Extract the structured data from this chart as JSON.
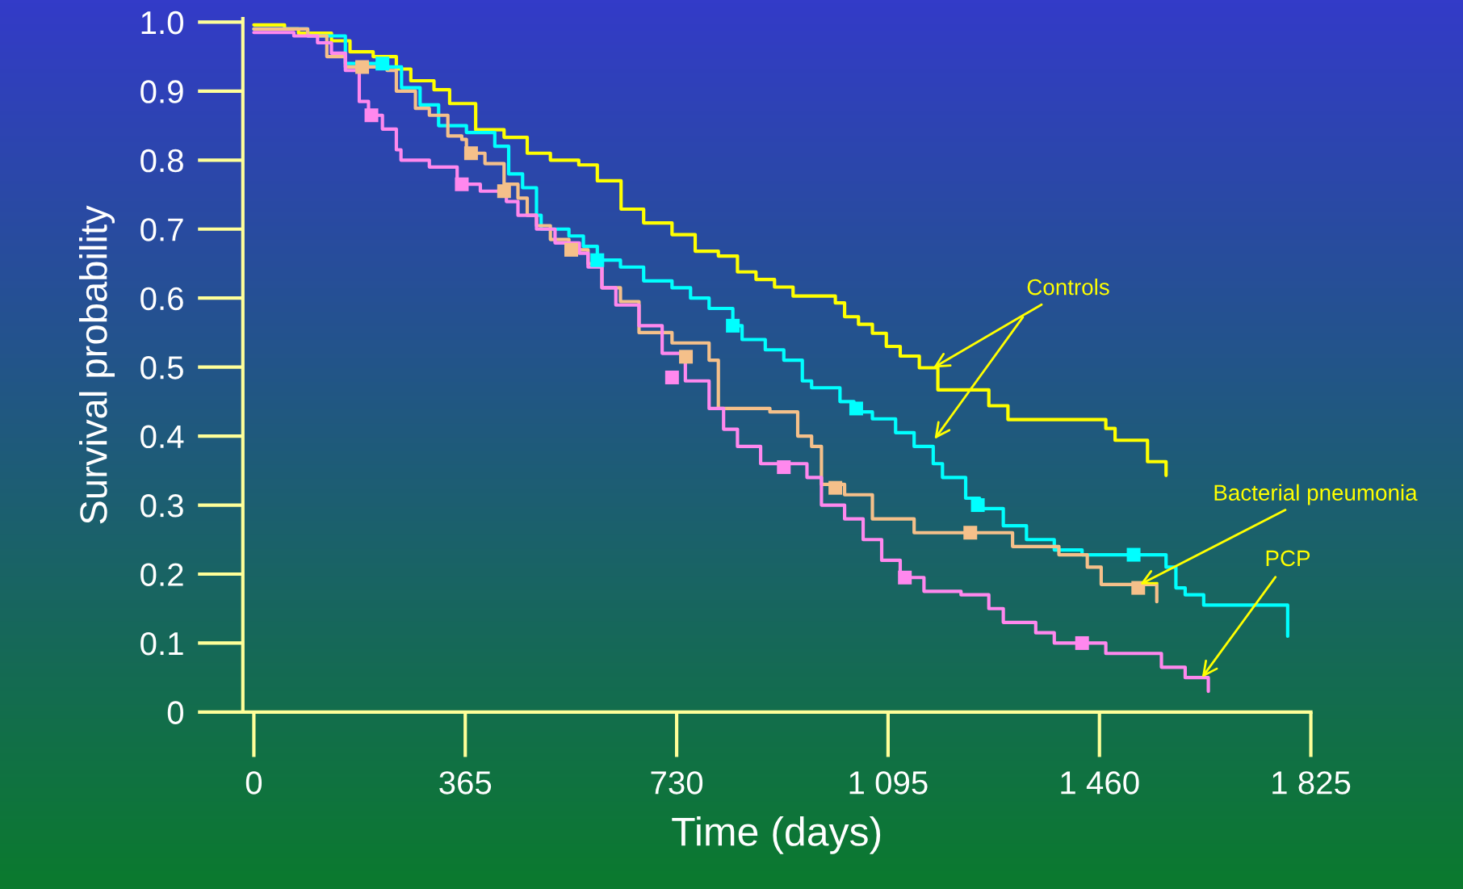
{
  "chart_data": {
    "type": "step",
    "xlabel": "Time (days)",
    "ylabel": "Survival probability",
    "xlim": [
      -19,
      1825
    ],
    "ylim": [
      0,
      1.005
    ],
    "xticks": [
      0,
      365,
      730,
      {
        "value": 1095,
        "label": "1 095"
      },
      {
        "value": 1460,
        "label": "1 460"
      },
      {
        "value": 1825,
        "label": "1 825"
      }
    ],
    "yticks": [
      {
        "value": 0,
        "label": "0"
      },
      0.1,
      0.2,
      0.3,
      0.4,
      0.5,
      0.6,
      0.7,
      0.8,
      0.9,
      {
        "value": 1.0,
        "label": "1.0"
      }
    ],
    "grid": false,
    "legend": false,
    "marker": "none",
    "line_style": "solid",
    "series": [
      {
        "color": "#ffff00",
        "x": [
          0,
          53,
          77,
          134,
          166,
          206,
          246,
          271,
          311,
          338,
          383,
          432,
          472,
          512,
          561,
          593,
          634,
          673,
          722,
          762,
          802,
          835,
          867,
          899,
          931,
          1004,
          1020,
          1044,
          1068,
          1092,
          1116,
          1149,
          1181,
          1269,
          1302,
          1471,
          1487,
          1543,
          1575,
          1575
        ],
        "values": [
          0.996,
          0.99,
          0.984,
          0.973,
          0.957,
          0.95,
          0.932,
          0.915,
          0.902,
          0.882,
          0.844,
          0.833,
          0.81,
          0.8,
          0.793,
          0.77,
          0.729,
          0.709,
          0.692,
          0.668,
          0.661,
          0.638,
          0.627,
          0.616,
          0.603,
          0.593,
          0.573,
          0.562,
          0.549,
          0.53,
          0.516,
          0.499,
          0.467,
          0.444,
          0.424,
          0.411,
          0.394,
          0.363,
          0.363,
          0.343
        ]
      },
      {
        "color": "#00ffff",
        "x": [
          0,
          93,
          158,
          222,
          255,
          287,
          319,
          367,
          416,
          440,
          464,
          488,
          496,
          544,
          569,
          593,
          633,
          673,
          722,
          754,
          786,
          827,
          843,
          883,
          915,
          947,
          963,
          1012,
          1036,
          1068,
          1108,
          1140,
          1173,
          1189,
          1229,
          1253,
          1294,
          1334,
          1382,
          1430,
          1575,
          1592,
          1608,
          1640,
          1785,
          1785
        ],
        "values": [
          0.99,
          0.98,
          0.94,
          0.935,
          0.905,
          0.88,
          0.85,
          0.84,
          0.82,
          0.78,
          0.76,
          0.72,
          0.7,
          0.69,
          0.675,
          0.655,
          0.645,
          0.625,
          0.615,
          0.6,
          0.585,
          0.56,
          0.54,
          0.525,
          0.51,
          0.48,
          0.47,
          0.45,
          0.435,
          0.425,
          0.405,
          0.385,
          0.36,
          0.34,
          0.31,
          0.295,
          0.27,
          0.25,
          0.235,
          0.228,
          0.21,
          0.18,
          0.17,
          0.155,
          0.155,
          0.11
        ]
      },
      {
        "color": "#f5c08a",
        "x": [
          0,
          93,
          126,
          158,
          230,
          246,
          279,
          303,
          335,
          359,
          367,
          399,
          432,
          456,
          472,
          488,
          512,
          544,
          577,
          601,
          633,
          665,
          722,
          786,
          802,
          891,
          939,
          963,
          980,
          1020,
          1068,
          1140,
          1310,
          1390,
          1439,
          1463,
          1559,
          1559
        ],
        "values": [
          0.99,
          0.98,
          0.95,
          0.935,
          0.93,
          0.9,
          0.875,
          0.865,
          0.835,
          0.83,
          0.81,
          0.795,
          0.765,
          0.745,
          0.72,
          0.705,
          0.685,
          0.67,
          0.65,
          0.615,
          0.595,
          0.55,
          0.535,
          0.51,
          0.44,
          0.435,
          0.4,
          0.385,
          0.33,
          0.315,
          0.28,
          0.26,
          0.24,
          0.228,
          0.21,
          0.185,
          0.185,
          0.16
        ]
      },
      {
        "color": "#ff88ee",
        "x": [
          0,
          69,
          110,
          134,
          158,
          182,
          198,
          222,
          246,
          254,
          303,
          351,
          391,
          436,
          456,
          488,
          520,
          562,
          577,
          601,
          625,
          665,
          705,
          745,
          786,
          811,
          835,
          875,
          955,
          980,
          1020,
          1052,
          1084,
          1116,
          1157,
          1221,
          1269,
          1294,
          1350,
          1382,
          1471,
          1567,
          1608,
          1648,
          1648
        ],
        "values": [
          0.985,
          0.98,
          0.97,
          0.955,
          0.93,
          0.885,
          0.865,
          0.845,
          0.815,
          0.8,
          0.79,
          0.765,
          0.755,
          0.74,
          0.72,
          0.7,
          0.68,
          0.665,
          0.645,
          0.615,
          0.59,
          0.56,
          0.52,
          0.48,
          0.44,
          0.41,
          0.385,
          0.36,
          0.34,
          0.3,
          0.28,
          0.25,
          0.22,
          0.195,
          0.175,
          0.17,
          0.15,
          0.13,
          0.115,
          0.1,
          0.085,
          0.065,
          0.05,
          0.05,
          0.03
        ]
      },
      {
        "type": "scatter",
        "marker": "square",
        "color": "#00ffff",
        "x": [
          222,
          593,
          827,
          1040,
          1250,
          1519
        ],
        "values": [
          0.94,
          0.655,
          0.56,
          0.44,
          0.3,
          0.228
        ]
      },
      {
        "type": "scatter",
        "marker": "square",
        "color": "#f5c08a",
        "x": [
          187,
          375,
          432,
          548,
          746,
          1004,
          1237,
          1527
        ],
        "values": [
          0.935,
          0.81,
          0.755,
          0.67,
          0.515,
          0.325,
          0.26,
          0.18
        ]
      },
      {
        "type": "scatter",
        "marker": "square",
        "color": "#ff88ee",
        "x": [
          203,
          359,
          722,
          915,
          1124,
          1430
        ],
        "values": [
          0.865,
          0.765,
          0.485,
          0.355,
          0.195,
          0.1
        ]
      }
    ],
    "annotations": [
      {
        "text": "Controls",
        "x": 1173,
        "y": 0.499
      },
      {
        "text": "Bacterial pneumonia",
        "x": 1530,
        "y": 0.185
      },
      {
        "text": "PCP",
        "x": 1637,
        "y": 0.05
      }
    ]
  }
}
